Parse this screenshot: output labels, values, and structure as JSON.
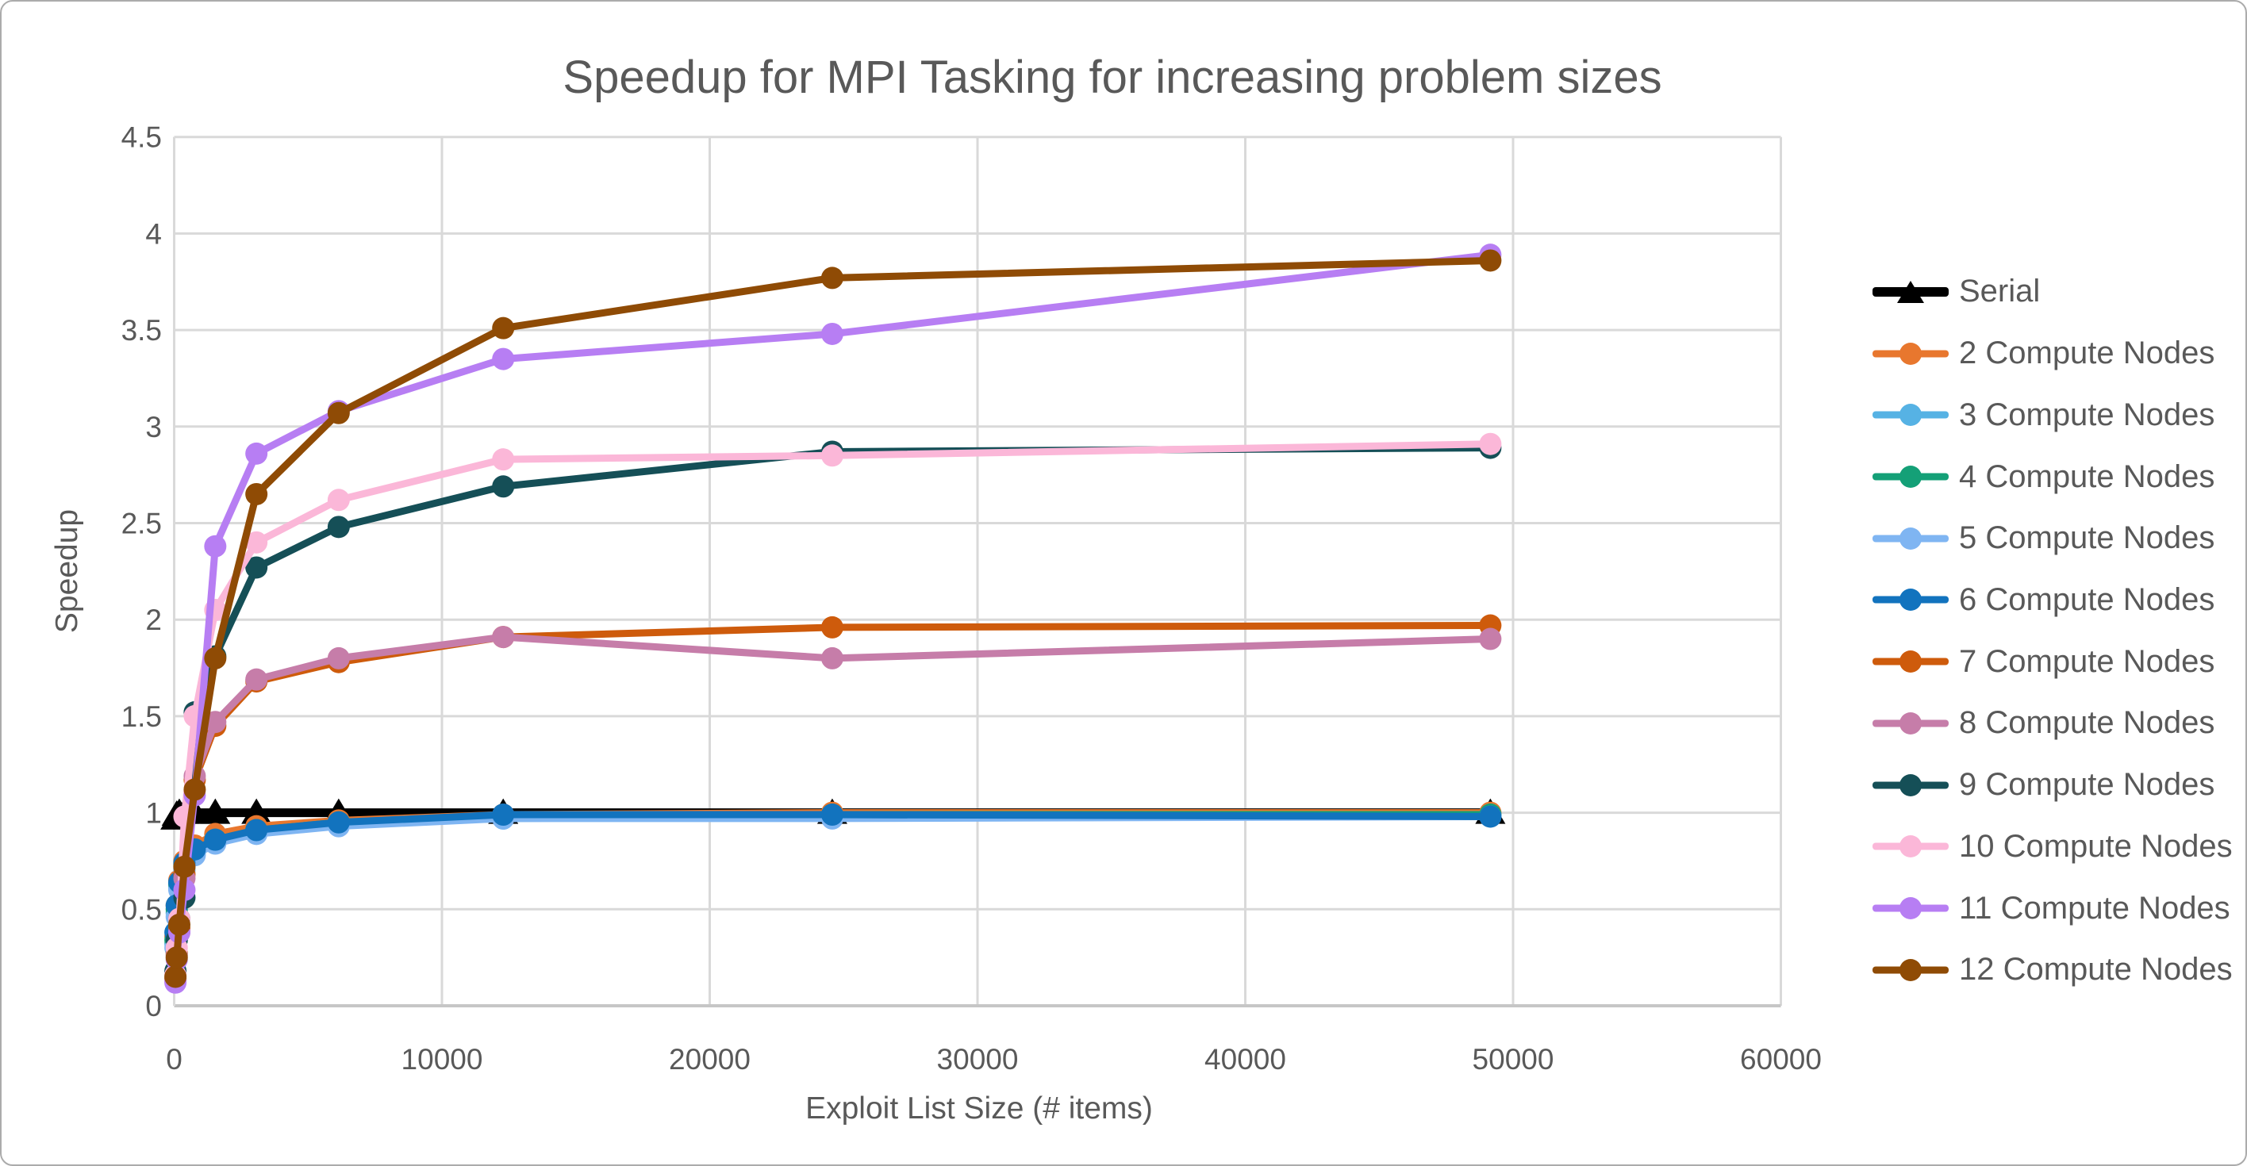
{
  "chart_data": {
    "type": "line",
    "title": "Speedup for MPI Tasking for increasing problem sizes",
    "xlabel": "Exploit List Size (# items)",
    "ylabel": "Speedup",
    "grid": true,
    "legend_position": "right",
    "xlim": [
      0,
      60000
    ],
    "ylim": [
      0,
      4.5
    ],
    "x_ticks": [
      0,
      10000,
      20000,
      30000,
      40000,
      50000,
      60000
    ],
    "y_tick_step": 0.5,
    "x": [
      48,
      96,
      192,
      384,
      768,
      1536,
      3072,
      6144,
      12288,
      24576,
      49152
    ],
    "series": [
      {
        "name": "Serial",
        "color": "#000000",
        "marker": "triangle",
        "values": [
          0.97,
          0.99,
          1.0,
          1.0,
          1.0,
          1.0,
          1.0,
          1.0,
          1.0,
          1.0,
          1.0
        ]
      },
      {
        "name": "2 Compute Nodes",
        "color": "#E8772E",
        "marker": "circle",
        "values": [
          0.36,
          0.52,
          0.65,
          0.75,
          0.83,
          0.89,
          0.93,
          0.96,
          0.99,
          1.0,
          1.0
        ]
      },
      {
        "name": "3 Compute Nodes",
        "color": "#56B2E4",
        "marker": "circle",
        "values": [
          0.32,
          0.48,
          0.61,
          0.71,
          0.79,
          0.85,
          0.9,
          0.94,
          0.97,
          0.98,
          0.99
        ]
      },
      {
        "name": "4 Compute Nodes",
        "color": "#14A077",
        "marker": "circle",
        "values": [
          0.34,
          0.5,
          0.63,
          0.73,
          0.8,
          0.86,
          0.91,
          0.95,
          0.98,
          0.99,
          0.99
        ]
      },
      {
        "name": "5 Compute Nodes",
        "color": "#7FB5F2",
        "marker": "circle",
        "values": [
          0.3,
          0.46,
          0.6,
          0.7,
          0.78,
          0.84,
          0.89,
          0.93,
          0.97,
          0.97,
          0.98
        ]
      },
      {
        "name": "6 Compute Nodes",
        "color": "#1273BE",
        "marker": "circle",
        "values": [
          0.38,
          0.52,
          0.64,
          0.74,
          0.81,
          0.86,
          0.91,
          0.95,
          0.99,
          0.99,
          0.98
        ]
      },
      {
        "name": "7 Compute Nodes",
        "color": "#CE5B0C",
        "marker": "circle",
        "values": [
          0.14,
          0.27,
          0.4,
          0.68,
          1.17,
          1.45,
          1.68,
          1.78,
          1.91,
          1.96,
          1.97
        ]
      },
      {
        "name": "8 Compute Nodes",
        "color": "#C67DA9",
        "marker": "circle",
        "values": [
          0.13,
          0.26,
          0.38,
          0.66,
          1.19,
          1.47,
          1.69,
          1.8,
          1.91,
          1.8,
          1.9
        ]
      },
      {
        "name": "9 Compute Nodes",
        "color": "#154F57",
        "marker": "circle",
        "values": [
          0.18,
          0.34,
          0.45,
          0.56,
          1.52,
          1.81,
          2.27,
          2.48,
          2.69,
          2.87,
          2.89
        ]
      },
      {
        "name": "10 Compute Nodes",
        "color": "#FBB7D8",
        "marker": "circle",
        "values": [
          0.16,
          0.3,
          0.45,
          0.98,
          1.5,
          2.05,
          2.4,
          2.62,
          2.83,
          2.85,
          2.91
        ]
      },
      {
        "name": "11 Compute Nodes",
        "color": "#B77EF3",
        "marker": "circle",
        "values": [
          0.12,
          0.24,
          0.38,
          0.6,
          1.09,
          2.38,
          2.86,
          3.08,
          3.35,
          3.48,
          3.89
        ]
      },
      {
        "name": "12 Compute Nodes",
        "color": "#8F4B05",
        "marker": "circle",
        "values": [
          0.15,
          0.25,
          0.42,
          0.72,
          1.12,
          1.8,
          2.65,
          3.07,
          3.51,
          3.77,
          3.86
        ]
      }
    ],
    "colors": {
      "gridline": "#D9D9D9",
      "axis_line": "#C6C6C6",
      "text": "#595959"
    }
  }
}
